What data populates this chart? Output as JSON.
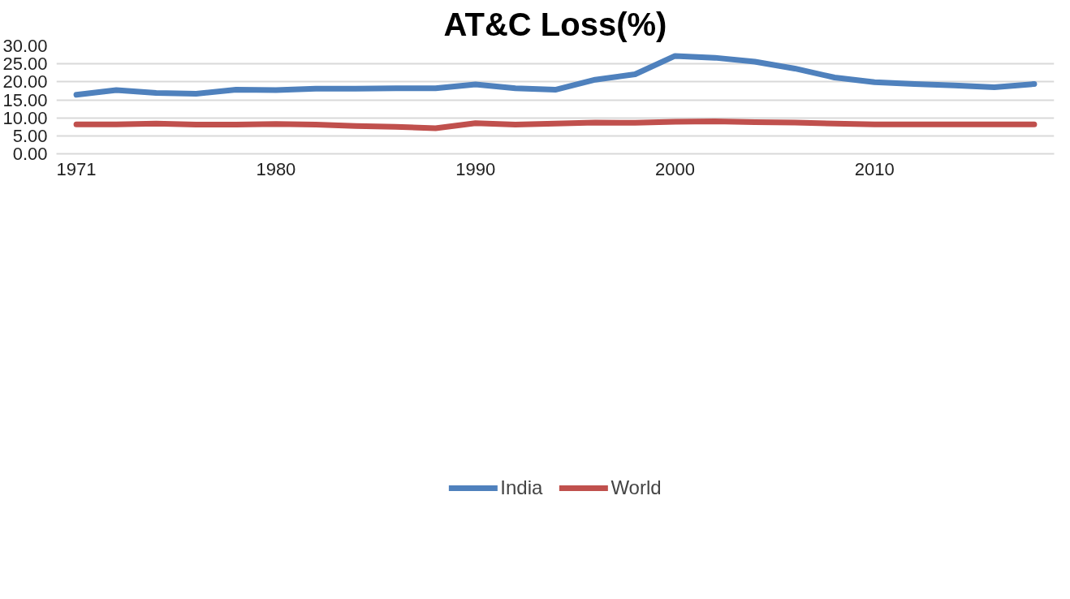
{
  "chart_data": {
    "type": "line",
    "title": "AT&C Loss(%)",
    "categories": [
      "1971",
      null,
      null,
      null,
      null,
      "1980",
      null,
      null,
      null,
      null,
      "1990",
      null,
      null,
      null,
      null,
      "2000",
      null,
      null,
      null,
      null,
      "2010",
      null,
      null,
      null,
      null
    ],
    "series": [
      {
        "name": "India",
        "color": "#4f81bd",
        "values": [
          16.4,
          17.7,
          16.9,
          16.7,
          17.8,
          17.7,
          18.1,
          18.1,
          18.2,
          18.2,
          19.3,
          18.2,
          17.8,
          20.6,
          22.1,
          27.2,
          26.7,
          25.6,
          23.7,
          21.2,
          19.9,
          19.4,
          19.0,
          18.5,
          19.4
        ]
      },
      {
        "name": "World",
        "color": "#c0504d",
        "values": [
          8.2,
          8.2,
          8.4,
          8.1,
          8.1,
          8.3,
          8.1,
          7.7,
          7.5,
          7.1,
          8.5,
          8.1,
          8.4,
          8.7,
          8.6,
          8.9,
          9.0,
          8.8,
          8.7,
          8.4,
          8.2,
          8.2,
          8.2,
          8.2,
          8.2
        ]
      }
    ],
    "ylim": [
      0,
      30
    ],
    "yticks": [
      {
        "value": 0,
        "label": "0.00"
      },
      {
        "value": 5,
        "label": "5.00"
      },
      {
        "value": 10,
        "label": "10.00"
      },
      {
        "value": 15,
        "label": "15.00"
      },
      {
        "value": 20,
        "label": "20.00"
      },
      {
        "value": 25,
        "label": "25.00"
      },
      {
        "value": 30,
        "label": "30.00"
      }
    ],
    "grid": "y",
    "legend": "bottom",
    "marker": "none",
    "line_style": "solid"
  }
}
